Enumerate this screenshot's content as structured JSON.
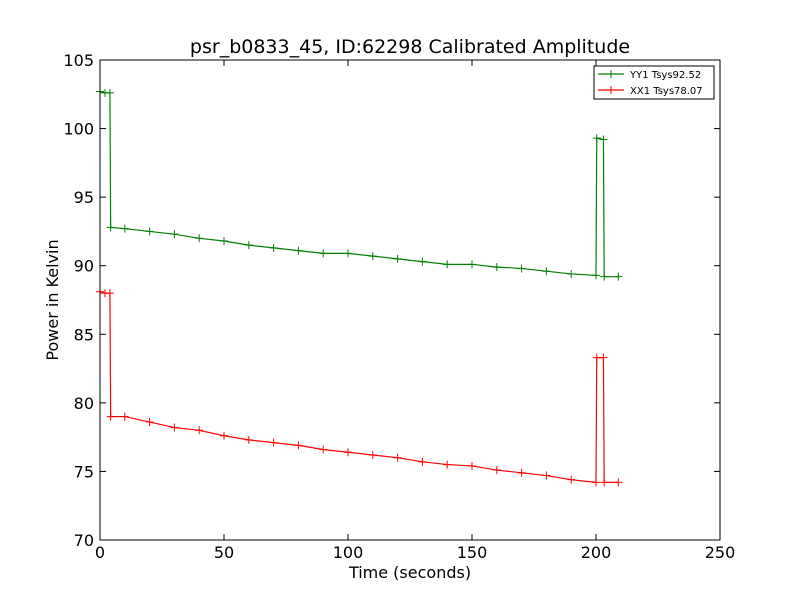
{
  "chart_data": {
    "type": "line",
    "title": "psr_b0833_45, ID:62298 Calibrated Amplitude",
    "xlabel": "Time (seconds)",
    "ylabel": "Power in Kelvin",
    "xlim": [
      0,
      250
    ],
    "ylim": [
      70,
      105
    ],
    "xticks": [
      0,
      50,
      100,
      150,
      200,
      250
    ],
    "yticks": [
      70,
      75,
      80,
      85,
      90,
      95,
      100,
      105
    ],
    "xtick_labels": [
      "0",
      "50",
      "100",
      "150",
      "200",
      "250"
    ],
    "ytick_labels": [
      "70",
      "75",
      "80",
      "85",
      "90",
      "95",
      "100",
      "105"
    ],
    "grid": false,
    "legend_position": "top-right",
    "marker": "+",
    "series": [
      {
        "name": "YY1 Tsys92.52",
        "color": "#008000",
        "points": [
          [
            0,
            102.7
          ],
          [
            2,
            102.6
          ],
          [
            4,
            102.6
          ],
          [
            4.3,
            92.8
          ],
          [
            10,
            92.7
          ],
          [
            20,
            92.5
          ],
          [
            30,
            92.3
          ],
          [
            40,
            92.0
          ],
          [
            50,
            91.8
          ],
          [
            60,
            91.5
          ],
          [
            70,
            91.3
          ],
          [
            80,
            91.1
          ],
          [
            90,
            90.9
          ],
          [
            100,
            90.9
          ],
          [
            110,
            90.7
          ],
          [
            120,
            90.5
          ],
          [
            130,
            90.3
          ],
          [
            140,
            90.1
          ],
          [
            150,
            90.1
          ],
          [
            160,
            89.9
          ],
          [
            170,
            89.8
          ],
          [
            180,
            89.6
          ],
          [
            190,
            89.4
          ],
          [
            200,
            89.3
          ],
          [
            200.3,
            99.3
          ],
          [
            203,
            99.2
          ],
          [
            203.3,
            89.2
          ],
          [
            209,
            89.2
          ]
        ]
      },
      {
        "name": "XX1 Tsys78.07",
        "color": "#ff0000",
        "points": [
          [
            0,
            88.1
          ],
          [
            2,
            88.0
          ],
          [
            4,
            88.0
          ],
          [
            4.3,
            79.0
          ],
          [
            10,
            79.0
          ],
          [
            20,
            78.6
          ],
          [
            30,
            78.2
          ],
          [
            40,
            78.0
          ],
          [
            50,
            77.6
          ],
          [
            60,
            77.3
          ],
          [
            70,
            77.1
          ],
          [
            80,
            76.9
          ],
          [
            90,
            76.6
          ],
          [
            100,
            76.4
          ],
          [
            110,
            76.2
          ],
          [
            120,
            76.0
          ],
          [
            130,
            75.7
          ],
          [
            140,
            75.5
          ],
          [
            150,
            75.4
          ],
          [
            160,
            75.1
          ],
          [
            170,
            74.9
          ],
          [
            180,
            74.7
          ],
          [
            190,
            74.4
          ],
          [
            200,
            74.2
          ],
          [
            200.3,
            83.3
          ],
          [
            203,
            83.3
          ],
          [
            203.3,
            74.2
          ],
          [
            209,
            74.2
          ]
        ]
      }
    ]
  }
}
